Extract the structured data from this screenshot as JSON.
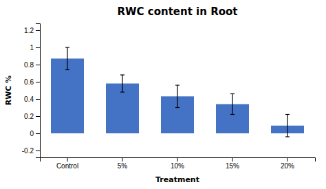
{
  "chart_data": {
    "type": "bar",
    "title": "RWC content in Root",
    "xlabel": "Treatment",
    "ylabel": "RWC %",
    "categories": [
      "Control",
      "5%",
      "10%",
      "15%",
      "20%"
    ],
    "values": [
      0.87,
      0.58,
      0.43,
      0.34,
      0.09
    ],
    "errors": [
      0.13,
      0.1,
      0.13,
      0.12,
      0.13
    ],
    "color": "#4472C4",
    "ylim": [
      -0.28,
      1.28
    ],
    "yticks": [
      -0.2,
      0,
      0.2,
      0.4,
      0.6,
      0.8,
      1,
      1.2
    ]
  }
}
